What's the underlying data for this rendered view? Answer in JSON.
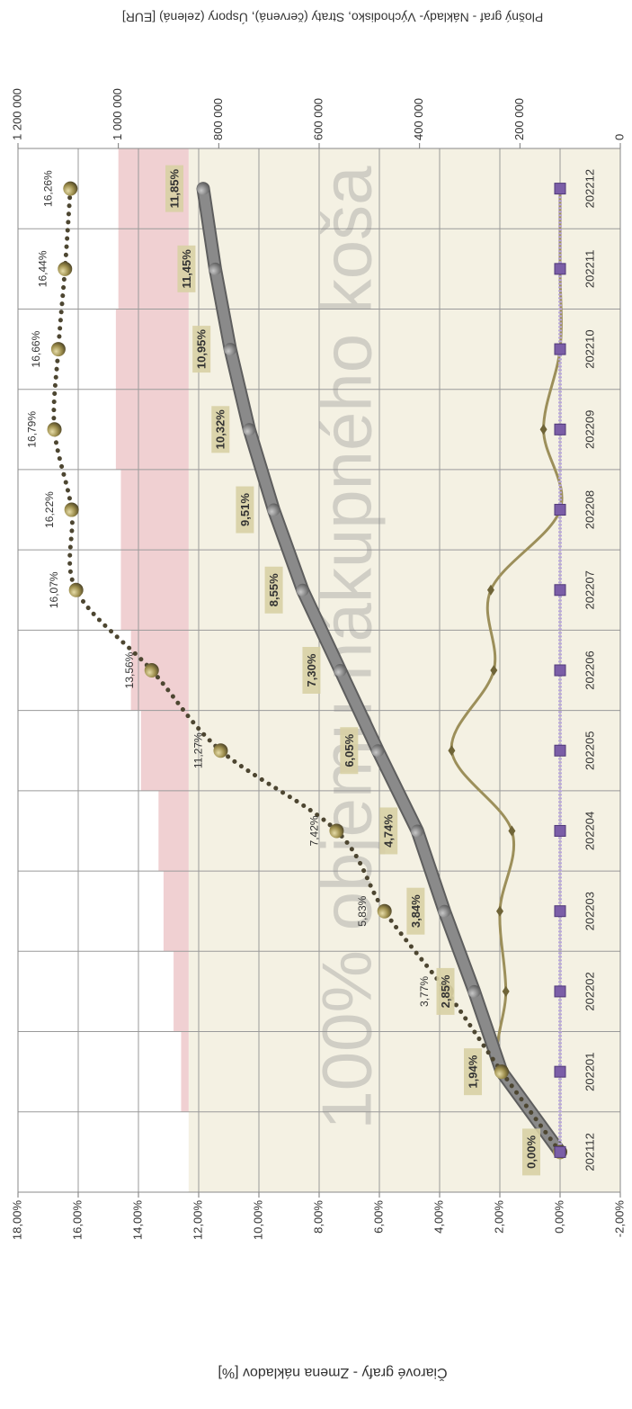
{
  "chart_data": {
    "type": "line",
    "y_label": "Čiarové grafy - Zmena nákladov [%]",
    "y2_label": "Plošný graf - Náklady- Východisko, Straty (červená), Úspory (zelená) [EUR]",
    "watermark": "100% objemu nákupného koša",
    "categories": [
      "202112",
      "202201",
      "202202",
      "202203",
      "202204",
      "202205",
      "202206",
      "202207",
      "202208",
      "202209",
      "202210",
      "202211",
      "202212"
    ],
    "ylim": [
      -2,
      18
    ],
    "yticks": [
      {
        "value": -2,
        "label": "-2,00%"
      },
      {
        "value": 0,
        "label": "0,00%"
      },
      {
        "value": 2,
        "label": "2,00%"
      },
      {
        "value": 4,
        "label": "4,00%"
      },
      {
        "value": 6,
        "label": "6,00%"
      },
      {
        "value": 8,
        "label": "8,00%"
      },
      {
        "value": 10,
        "label": "10,00%"
      },
      {
        "value": 12,
        "label": "12,00%"
      },
      {
        "value": 14,
        "label": "14,00%"
      },
      {
        "value": 16,
        "label": "16,00%"
      },
      {
        "value": 18,
        "label": "18,00%"
      }
    ],
    "y2lim": [
      0,
      1200000
    ],
    "y2ticks": [
      0,
      {
        "value": 200000,
        "label": "200 000"
      },
      {
        "value": 400000,
        "label": "400 000"
      },
      {
        "value": 600000,
        "label": "600 000"
      },
      {
        "value": 800000,
        "label": "800 000"
      },
      {
        "value": 1000000,
        "label": "1 000 000"
      },
      {
        "value": 1200000,
        "label": "1 200 000"
      }
    ],
    "grid": true,
    "series": [
      {
        "type": "area",
        "axis": "y2",
        "stacked": true,
        "color": "#f4f1e3",
        "values": [
          860000,
          860000,
          860000,
          860000,
          860000,
          860000,
          860000,
          860000,
          860000,
          860000,
          860000,
          860000,
          860000
        ]
      },
      {
        "type": "area",
        "axis": "y2",
        "stacked": true,
        "color": "#f0d0d2",
        "values": [
          0,
          15000,
          30000,
          50000,
          60000,
          95000,
          115000,
          135000,
          135000,
          145000,
          145000,
          140000,
          140000
        ]
      },
      {
        "type": "line",
        "style": "smooth",
        "color": "#9c8f5a",
        "values": [
          0,
          2.0,
          1.8,
          2.0,
          1.6,
          3.6,
          2.2,
          2.3,
          0,
          0.55,
          0,
          0,
          0
        ]
      },
      {
        "type": "line",
        "style": "thick",
        "color": "#8a8a8a",
        "values": [
          0,
          1.94,
          2.85,
          3.84,
          4.74,
          6.05,
          7.3,
          8.55,
          9.51,
          10.32,
          10.95,
          11.45,
          11.85
        ],
        "value_labels": [
          "0,00%",
          "1,94%",
          "2,85%",
          "3,84%",
          "4,74%",
          "6,05%",
          "7,30%",
          "8,55%",
          "9,51%",
          "10,32%",
          "10,95%",
          "11,45%",
          "11,85%"
        ]
      },
      {
        "type": "line",
        "style": "dotted",
        "color": "#4d4631",
        "values": [
          0,
          1.94,
          3.77,
          5.83,
          7.42,
          11.27,
          13.56,
          16.07,
          16.22,
          16.79,
          16.66,
          16.44,
          16.26
        ],
        "value_labels": [
          null,
          null,
          "3,77%",
          "5,83%",
          "7,42%",
          "11,27%",
          "13,56%",
          "16,07%",
          "16,22%",
          "16,79%",
          "16,66%",
          "16,44%",
          "16,26%"
        ]
      },
      {
        "type": "line",
        "style": "squares",
        "color": "#7b5ea7",
        "values": [
          0,
          0,
          0,
          0,
          0,
          0,
          0,
          0,
          0,
          0,
          0,
          0,
          0
        ]
      }
    ]
  }
}
